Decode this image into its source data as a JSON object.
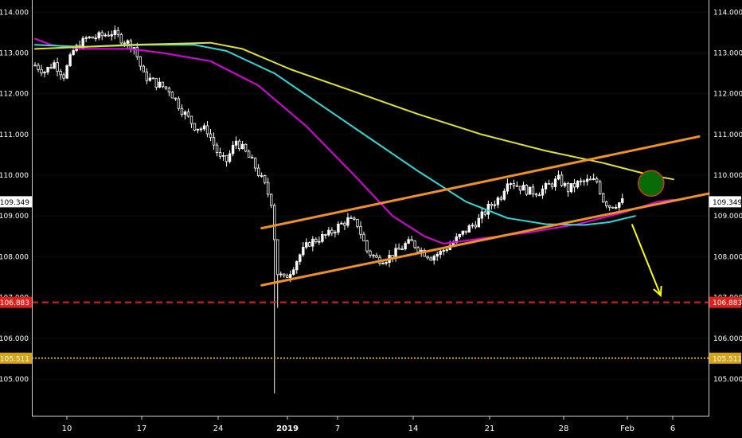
{
  "chart_data": {
    "type": "candlestick",
    "x_ticks": [
      "10",
      "17",
      "24",
      "2019",
      "7",
      "14",
      "21",
      "28",
      "Feb",
      "6"
    ],
    "y_ticks": [
      "114.000",
      "113.000",
      "112.000",
      "111.000",
      "110.000",
      "109.000",
      "108.000",
      "107.000",
      "106.000",
      "105.000"
    ],
    "ylim": [
      104.1,
      114.3
    ],
    "current_price": "109.349",
    "horizontal_levels": [
      {
        "value": 106.883,
        "label": "106.883",
        "color": "#e0201e",
        "style": "dashed"
      },
      {
        "value": 105.511,
        "label": "105.511",
        "color": "#d6a313",
        "style": "dotted"
      }
    ],
    "series": [
      {
        "type": "moving-average",
        "color": "#e000e0",
        "points": [
          [
            0,
            113.35
          ],
          [
            5,
            113.2
          ],
          [
            15,
            113.1
          ],
          [
            30,
            113.1
          ],
          [
            40,
            113.0
          ],
          [
            55,
            112.8
          ],
          [
            70,
            112.2
          ],
          [
            85,
            111.2
          ],
          [
            100,
            110.0
          ],
          [
            112,
            109.0
          ],
          [
            122,
            108.5
          ],
          [
            128,
            108.32
          ],
          [
            140,
            108.45
          ],
          [
            155,
            108.6
          ],
          [
            170,
            108.8
          ],
          [
            185,
            109.1
          ],
          [
            195,
            109.35
          ],
          [
            200,
            109.4
          ]
        ]
      },
      {
        "type": "moving-average",
        "color": "#2ed9d9",
        "points": [
          [
            0,
            113.2
          ],
          [
            15,
            113.15
          ],
          [
            35,
            113.2
          ],
          [
            50,
            113.2
          ],
          [
            60,
            113.05
          ],
          [
            75,
            112.5
          ],
          [
            90,
            111.7
          ],
          [
            105,
            110.9
          ],
          [
            120,
            110.1
          ],
          [
            135,
            109.35
          ],
          [
            148,
            108.95
          ],
          [
            160,
            108.8
          ],
          [
            172,
            108.78
          ],
          [
            180,
            108.85
          ],
          [
            188,
            109.0
          ]
        ]
      },
      {
        "type": "moving-average",
        "color": "#e2e22a",
        "points": [
          [
            0,
            113.1
          ],
          [
            30,
            113.2
          ],
          [
            55,
            113.25
          ],
          [
            65,
            113.1
          ],
          [
            80,
            112.6
          ],
          [
            100,
            112.05
          ],
          [
            120,
            111.5
          ],
          [
            140,
            111.0
          ],
          [
            160,
            110.6
          ],
          [
            178,
            110.3
          ],
          [
            193,
            110.0
          ],
          [
            200,
            109.9
          ]
        ]
      }
    ],
    "annotations": [
      {
        "type": "channel-line",
        "color": "#f0921f",
        "from": [
          71,
          108.7
        ],
        "to": [
          208,
          110.95
        ]
      },
      {
        "type": "channel-line",
        "color": "#f0921f",
        "from": [
          71,
          107.3
        ],
        "to": [
          211,
          109.55
        ]
      },
      {
        "type": "arrow",
        "color": "#ffff00",
        "from": [
          187,
          108.8
        ],
        "to": [
          196,
          107.05
        ]
      },
      {
        "type": "circle-marker",
        "fill": "#086b08",
        "stroke": "#d43a1c",
        "at": [
          193,
          109.8
        ]
      }
    ]
  }
}
